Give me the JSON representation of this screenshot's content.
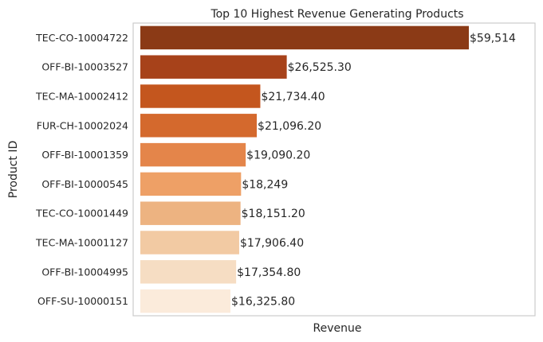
{
  "chart_data": {
    "type": "bar",
    "orientation": "horizontal",
    "title": "Top 10 Highest Revenue Generating Products",
    "xlabel": "Revenue",
    "ylabel": "Product ID",
    "grid": false,
    "xlim": [
      0,
      62400
    ],
    "categories": [
      "TEC-CO-10004722",
      "OFF-BI-10003527",
      "TEC-MA-10002412",
      "FUR-CH-10002024",
      "OFF-BI-10001359",
      "OFF-BI-10000545",
      "TEC-CO-10001449",
      "TEC-MA-10001127",
      "OFF-BI-10004995",
      "OFF-SU-10000151"
    ],
    "values": [
      59514,
      26525.3,
      21734.4,
      21096.2,
      19090.2,
      18249,
      18151.2,
      17906.4,
      17354.8,
      16325.8
    ],
    "data_labels": [
      "$59,514",
      "$26,525.30",
      "$21,734.40",
      "$21,096.20",
      "$19,090.20",
      "$18,249",
      "$18,151.20",
      "$17,906.40",
      "$17,354.80",
      "$16,325.80"
    ],
    "colors": [
      "#8b3a16",
      "#a7421a",
      "#c4561e",
      "#d4692d",
      "#e4854a",
      "#eea066",
      "#edb381",
      "#f2caa3",
      "#f6ddc3",
      "#fbebdb"
    ],
    "axis_color": "#cccccc"
  }
}
